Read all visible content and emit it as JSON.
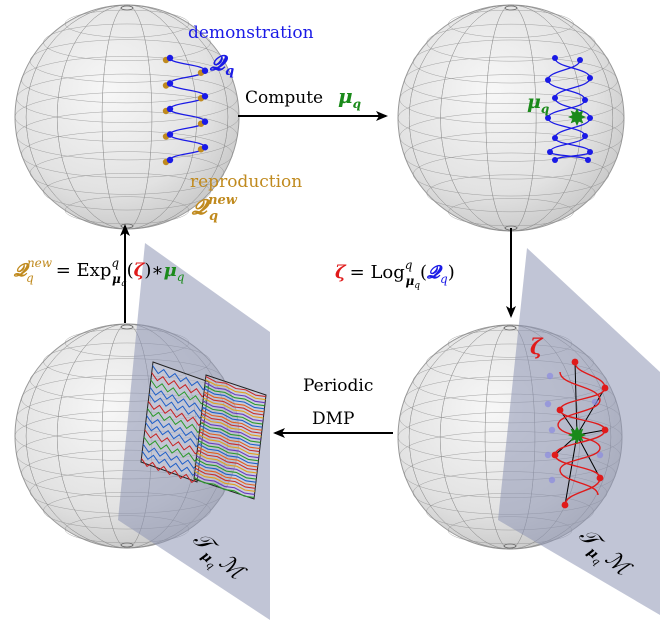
{
  "labels": {
    "demonstration": "demonstration",
    "q_demo": "𝓠",
    "q_demo_sub": "q",
    "compute": "Compute",
    "mu": "μ",
    "mu_sub": "q",
    "reproduction": "reproduction",
    "q_new": "𝓠",
    "q_new_sup": "new",
    "q_new_sub": "q",
    "exp_lhs_q": "𝓠",
    "exp_lhs_sup": "new",
    "exp_lhs_sub": "q",
    "exp_eq": "= Exp",
    "exp_sup": "q",
    "exp_sub": "μ",
    "exp_sub2": "q",
    "exp_paren_open": "(",
    "exp_zeta": "ζ",
    "exp_paren_close": ")",
    "exp_star": "∗",
    "exp_mu": "μ",
    "exp_mu_sub": "q",
    "log_zeta": "ζ",
    "log_eq": "= Log",
    "log_sup": "q",
    "log_sub": "μ",
    "log_sub2": "q",
    "log_paren_open": "(",
    "log_q": "𝓠",
    "log_q_sub": "q",
    "log_paren_close": ")",
    "zeta_bottom": "ζ",
    "periodic": "Periodic",
    "dmp": "DMP",
    "tangent_left": "𝒯",
    "tangent_left_sub": "μ",
    "tangent_left_sub2": "q",
    "tangent_left_m": "ℳ",
    "tangent_right": "𝒯",
    "tangent_right_sub": "μ",
    "tangent_right_sub2": "q",
    "tangent_right_m": "ℳ"
  },
  "colors": {
    "blue": "#1a1ae6",
    "orange": "#c08a1e",
    "green": "#1a8a1a",
    "red": "#e01a1a",
    "plane": "#8e96b4",
    "sphere_fill": "#ececec",
    "grid": "#8a8a8a"
  }
}
